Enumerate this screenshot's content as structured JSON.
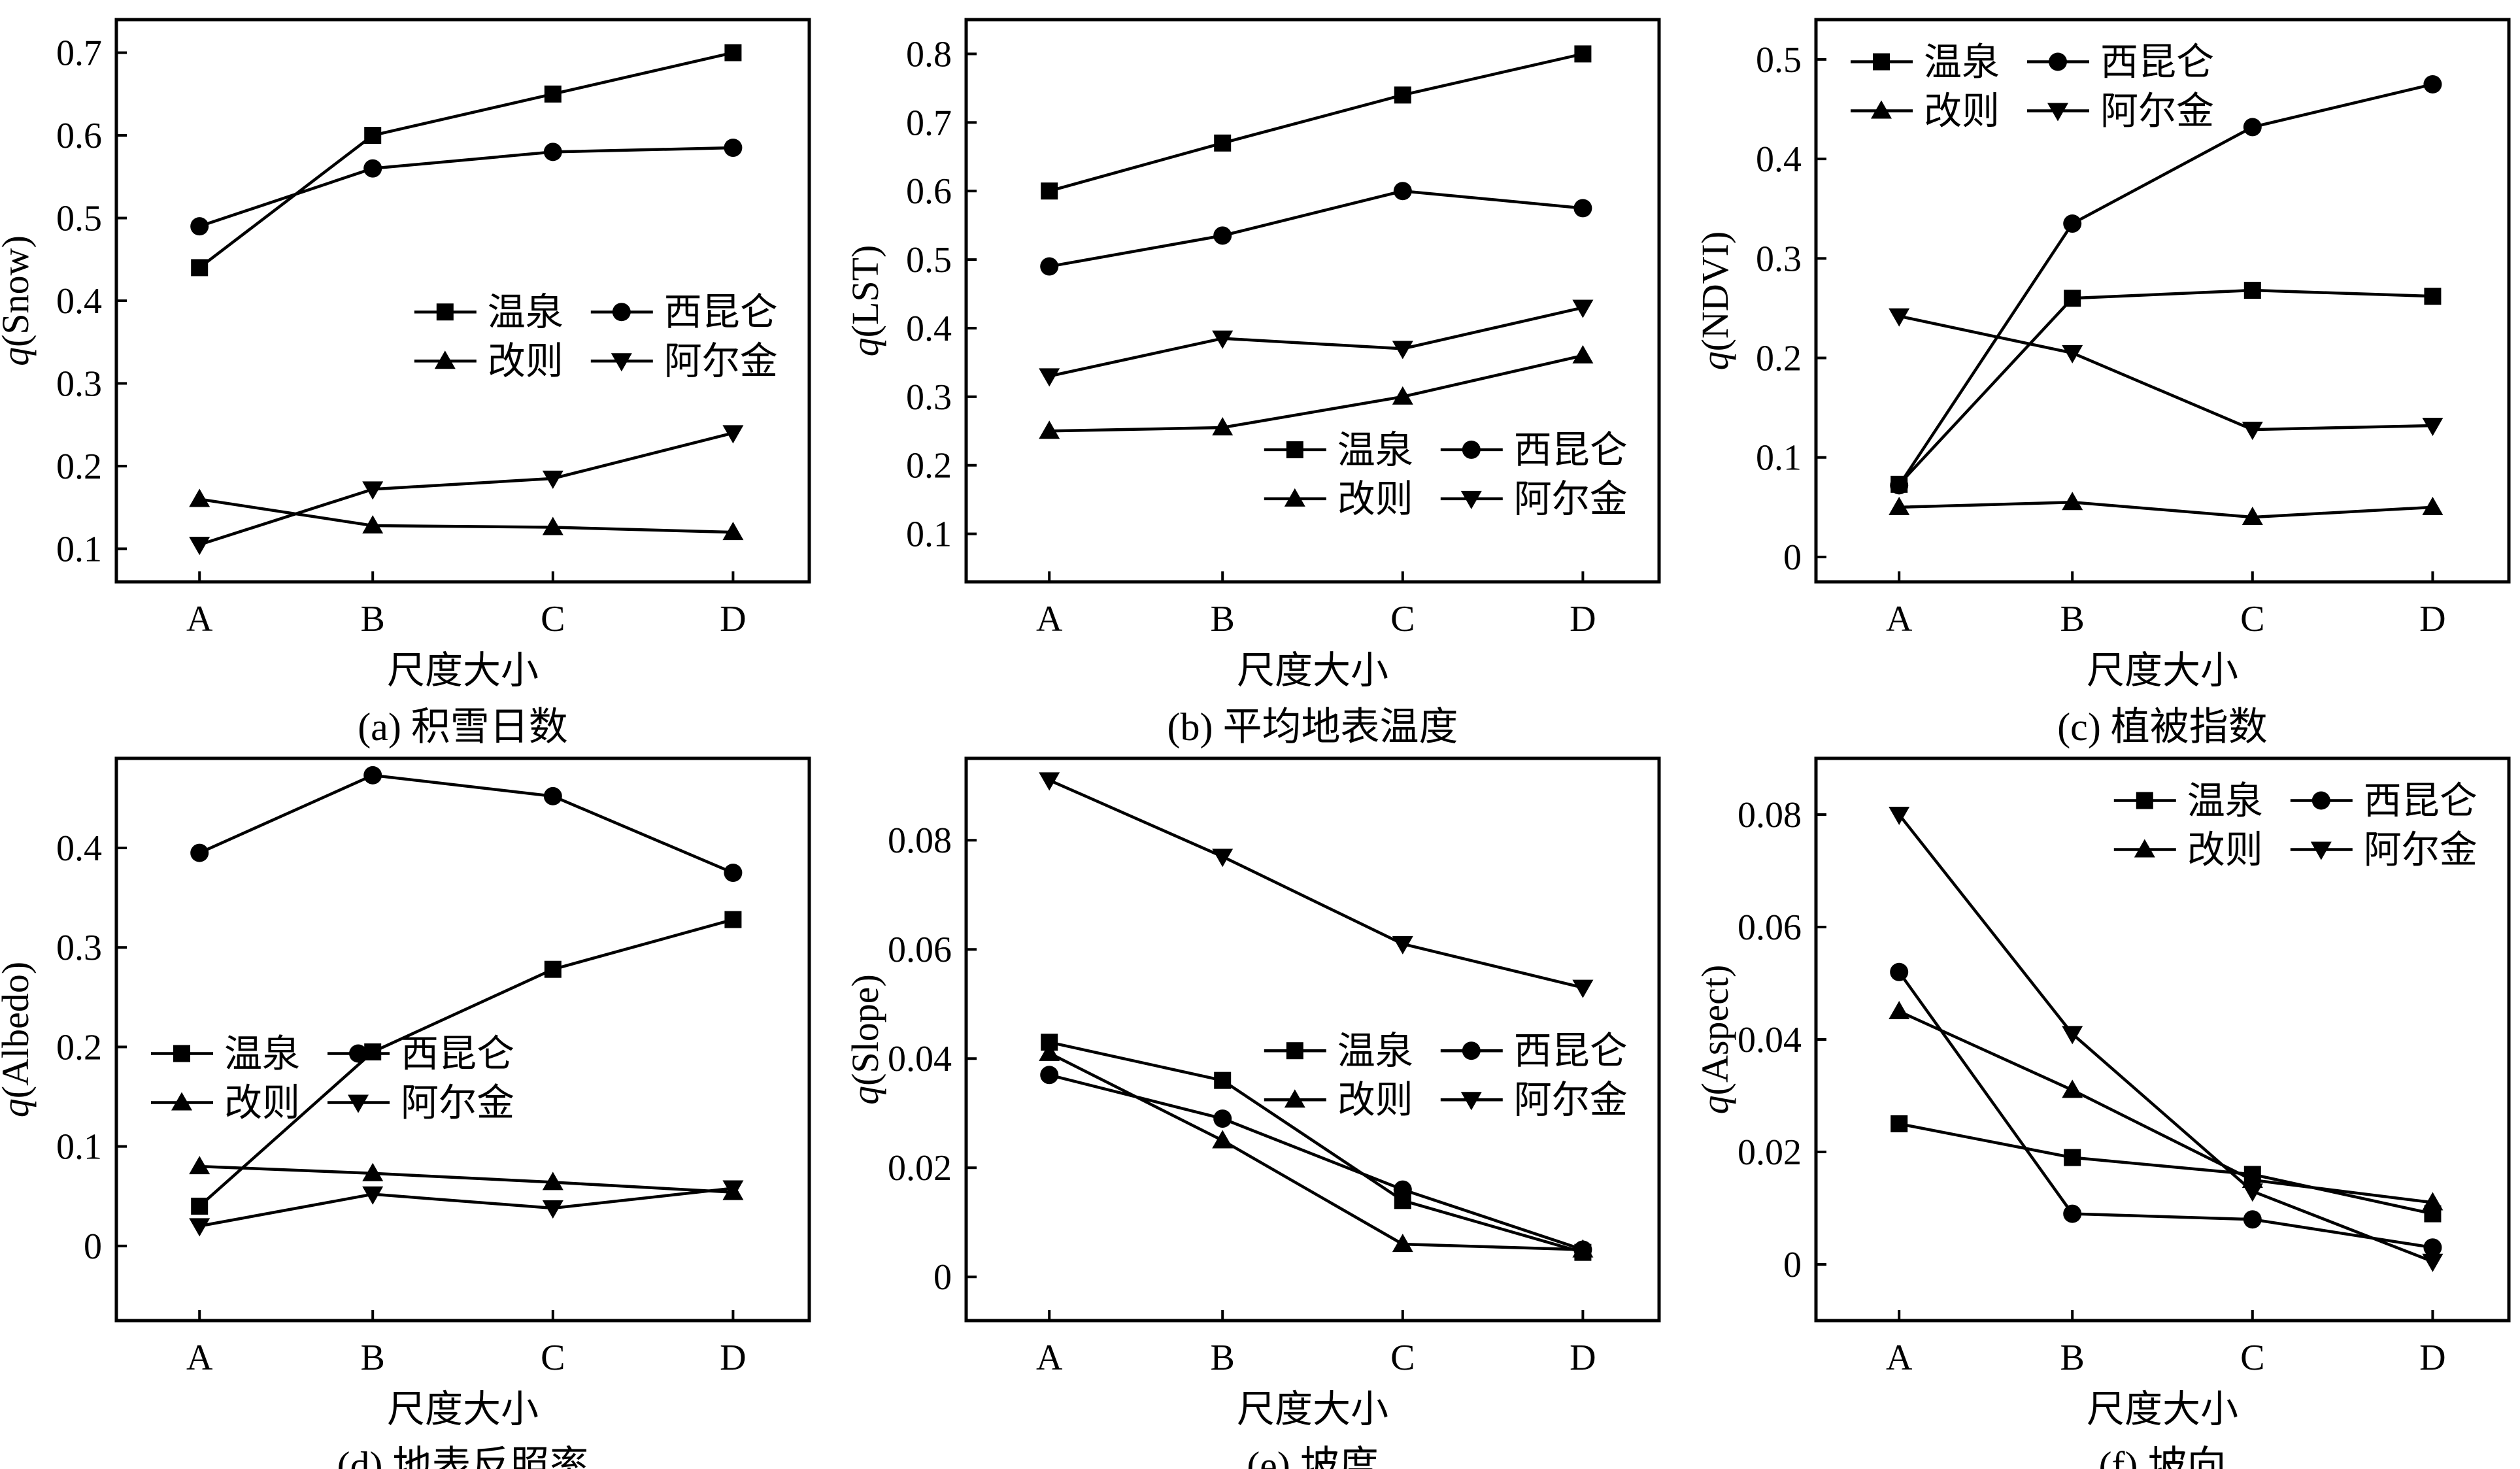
{
  "chart_data": [
    {
      "type": "line",
      "panel": "a",
      "caption": "(a) 积雪日数",
      "ylabel_var": "q",
      "ylabel_paren": "(Snow)",
      "xlabel": "尺度大小",
      "categories": [
        "A",
        "B",
        "C",
        "D"
      ],
      "yticks": [
        "0.1",
        "0.2",
        "0.3",
        "0.4",
        "0.5",
        "0.6",
        "0.7"
      ],
      "ylim": [
        0.06,
        0.74
      ],
      "legend": "middle-right",
      "series": [
        {
          "name": "温泉",
          "marker": "square",
          "values": [
            0.44,
            0.6,
            0.65,
            0.7
          ]
        },
        {
          "name": "西昆仑",
          "marker": "circle",
          "values": [
            0.49,
            0.56,
            0.58,
            0.585
          ]
        },
        {
          "name": "改则",
          "marker": "triangle-up",
          "values": [
            0.16,
            0.128,
            0.126,
            0.12
          ]
        },
        {
          "name": "阿尔金",
          "marker": "triangle-down",
          "values": [
            0.105,
            0.172,
            0.185,
            0.24
          ]
        }
      ]
    },
    {
      "type": "line",
      "panel": "b",
      "caption": "(b) 平均地表温度",
      "ylabel_var": "q",
      "ylabel_paren": "(LST)",
      "xlabel": "尺度大小",
      "categories": [
        "A",
        "B",
        "C",
        "D"
      ],
      "yticks": [
        "0.1",
        "0.2",
        "0.3",
        "0.4",
        "0.5",
        "0.6",
        "0.7",
        "0.8"
      ],
      "ylim": [
        0.03,
        0.85
      ],
      "legend": "bottom-right",
      "series": [
        {
          "name": "温泉",
          "marker": "square",
          "values": [
            0.6,
            0.67,
            0.74,
            0.8
          ]
        },
        {
          "name": "西昆仑",
          "marker": "circle",
          "values": [
            0.49,
            0.535,
            0.6,
            0.575
          ]
        },
        {
          "name": "改则",
          "marker": "triangle-up",
          "values": [
            0.25,
            0.255,
            0.3,
            0.36
          ]
        },
        {
          "name": "阿尔金",
          "marker": "triangle-down",
          "values": [
            0.33,
            0.385,
            0.37,
            0.43
          ]
        }
      ]
    },
    {
      "type": "line",
      "panel": "c",
      "caption": "(c) 植被指数",
      "ylabel_var": "q",
      "ylabel_paren": "(NDVI)",
      "xlabel": "尺度大小",
      "categories": [
        "A",
        "B",
        "C",
        "D"
      ],
      "yticks": [
        "0",
        "0.1",
        "0.2",
        "0.3",
        "0.4",
        "0.5"
      ],
      "ylim": [
        -0.025,
        0.54
      ],
      "legend": "top-left",
      "series": [
        {
          "name": "温泉",
          "marker": "square",
          "values": [
            0.073,
            0.26,
            0.268,
            0.262
          ]
        },
        {
          "name": "西昆仑",
          "marker": "circle",
          "values": [
            0.072,
            0.335,
            0.432,
            0.475
          ]
        },
        {
          "name": "改则",
          "marker": "triangle-up",
          "values": [
            0.05,
            0.055,
            0.04,
            0.05
          ]
        },
        {
          "name": "阿尔金",
          "marker": "triangle-down",
          "values": [
            0.242,
            0.205,
            0.128,
            0.132
          ]
        }
      ]
    },
    {
      "type": "line",
      "panel": "d",
      "caption": "(d) 地表反照率",
      "ylabel_var": "q",
      "ylabel_paren": "(Albedo)",
      "xlabel": "尺度大小",
      "categories": [
        "A",
        "B",
        "C",
        "D"
      ],
      "yticks": [
        "0",
        "0.1",
        "0.2",
        "0.3",
        "0.4"
      ],
      "ylim": [
        -0.075,
        0.49
      ],
      "legend": "middle-left",
      "series": [
        {
          "name": "温泉",
          "marker": "square",
          "values": [
            0.04,
            0.195,
            0.278,
            0.328
          ]
        },
        {
          "name": "西昆仑",
          "marker": "circle",
          "values": [
            0.395,
            0.473,
            0.452,
            0.375
          ]
        },
        {
          "name": "改则",
          "marker": "triangle-up",
          "values": [
            0.08,
            0.073,
            0.064,
            0.054
          ]
        },
        {
          "name": "阿尔金",
          "marker": "triangle-down",
          "values": [
            0.02,
            0.052,
            0.038,
            0.058
          ]
        }
      ]
    },
    {
      "type": "line",
      "panel": "e",
      "caption": "(e) 坡度",
      "ylabel_var": "q",
      "ylabel_paren": "(Slope)",
      "xlabel": "尺度大小",
      "categories": [
        "A",
        "B",
        "C",
        "D"
      ],
      "yticks": [
        "0",
        "0.02",
        "0.04",
        "0.06",
        "0.08"
      ],
      "ylim": [
        -0.008,
        0.095
      ],
      "legend": "middle-right",
      "series": [
        {
          "name": "温泉",
          "marker": "square",
          "values": [
            0.043,
            0.036,
            0.014,
            0.0045
          ]
        },
        {
          "name": "西昆仑",
          "marker": "circle",
          "values": [
            0.037,
            0.029,
            0.016,
            0.005
          ]
        },
        {
          "name": "改则",
          "marker": "triangle-up",
          "values": [
            0.041,
            0.025,
            0.006,
            0.005
          ]
        },
        {
          "name": "阿尔金",
          "marker": "triangle-down",
          "values": [
            0.091,
            0.077,
            0.061,
            0.053
          ]
        }
      ]
    },
    {
      "type": "line",
      "panel": "f",
      "caption": "(f) 坡向",
      "ylabel_var": "q",
      "ylabel_paren": "(Aspect)",
      "xlabel": "尺度大小",
      "categories": [
        "A",
        "B",
        "C",
        "D"
      ],
      "yticks": [
        "0",
        "0.02",
        "0.04",
        "0.06",
        "0.08"
      ],
      "ylim": [
        -0.01,
        0.09
      ],
      "legend": "top-right",
      "series": [
        {
          "name": "温泉",
          "marker": "square",
          "values": [
            0.025,
            0.019,
            0.016,
            0.009
          ]
        },
        {
          "name": "西昆仑",
          "marker": "circle",
          "values": [
            0.052,
            0.009,
            0.008,
            0.003
          ]
        },
        {
          "name": "改则",
          "marker": "triangle-up",
          "values": [
            0.045,
            0.031,
            0.015,
            0.011
          ]
        },
        {
          "name": "阿尔金",
          "marker": "triangle-down",
          "values": [
            0.08,
            0.041,
            0.013,
            0.0005
          ]
        }
      ]
    }
  ]
}
